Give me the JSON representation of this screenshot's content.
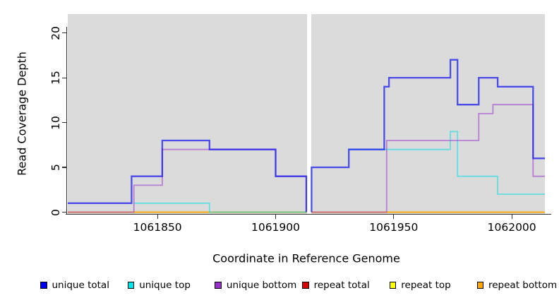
{
  "figure": {
    "background": "#ffffff",
    "plot_background": "#dbdbdb",
    "axis_color": "#303030",
    "text_color": "#000000"
  },
  "chart_data": {
    "type": "line",
    "subtype": "step-coverage",
    "title": "",
    "xlabel": "Coordinate in Reference Genome",
    "ylabel": "Read Coverage Depth",
    "xlim": [
      1061812,
      1062014
    ],
    "ylim": [
      0,
      22.1
    ],
    "grid": false,
    "legend_position": "bottom",
    "x_ticks": [
      {
        "value": 1061850,
        "label": "1061850"
      },
      {
        "value": 1061900,
        "label": "1061900"
      },
      {
        "value": 1061950,
        "label": "1061950"
      },
      {
        "value": 1062000,
        "label": "1062000"
      }
    ],
    "y_ticks": [
      {
        "value": 0,
        "label": "0"
      },
      {
        "value": 5,
        "label": "5"
      },
      {
        "value": 10,
        "label": "10"
      },
      {
        "value": 15,
        "label": "15"
      },
      {
        "value": 20,
        "label": "20"
      }
    ],
    "gap_band": {
      "from": 1061913.2,
      "to": 1061915.2,
      "color": "#ffffff"
    },
    "series": [
      {
        "name": "repeat total",
        "color": "#e00000",
        "opacity": 0.8,
        "width": 1.6,
        "panels": [
          {
            "steps": [
              [
                1061812,
                0
              ]
            ],
            "end": 1061913
          },
          {
            "steps": [
              [
                1061915.2,
                0
              ]
            ],
            "end": 1062014
          }
        ]
      },
      {
        "name": "repeat top",
        "color": "#ffff00",
        "opacity": 0.85,
        "width": 1.6,
        "panels": [
          {
            "steps": [
              [
                1061812,
                0
              ]
            ],
            "end": 1061913
          },
          {
            "steps": [
              [
                1061915.2,
                0
              ]
            ],
            "end": 1062014
          }
        ]
      },
      {
        "name": "repeat bottom",
        "color": "#ffa500",
        "opacity": 0.9,
        "width": 1.8,
        "panels": [
          {
            "steps": [
              [
                1061812,
                0
              ]
            ],
            "end": 1061913
          },
          {
            "steps": [
              [
                1061915.2,
                0
              ]
            ],
            "end": 1062014
          }
        ]
      },
      {
        "name": "unique top",
        "color": "#00dde8",
        "opacity": 0.55,
        "width": 1.8,
        "panels": [
          {
            "steps": [
              [
                1061840,
                1
              ],
              [
                1061872,
                0
              ]
            ],
            "end": 1061913
          },
          {
            "steps": [
              [
                1061931,
                7
              ],
              [
                1061974,
                9
              ],
              [
                1061977,
                4
              ],
              [
                1061994,
                2
              ]
            ],
            "end": 1062014
          }
        ]
      },
      {
        "name": "unique bottom",
        "color": "#9932cc",
        "opacity": 0.55,
        "width": 1.8,
        "panels": [
          {
            "steps": [
              [
                1061812,
                0
              ],
              [
                1061840,
                3
              ],
              [
                1061852,
                7
              ],
              [
                1061900,
                4
              ],
              [
                1061913,
                0
              ]
            ],
            "end": 1061913
          },
          {
            "steps": [
              [
                1061915.2,
                0
              ],
              [
                1061947,
                8
              ],
              [
                1061986,
                11
              ],
              [
                1061992,
                12
              ],
              [
                1062009,
                4
              ]
            ],
            "end": 1062014
          }
        ]
      },
      {
        "name": "unique total",
        "color": "#1414ee",
        "opacity": 0.72,
        "width": 2.3,
        "panels": [
          {
            "steps": [
              [
                1061812,
                1
              ],
              [
                1061839,
                4
              ],
              [
                1061852,
                8
              ],
              [
                1061872,
                7
              ],
              [
                1061900,
                4
              ],
              [
                1061913,
                0
              ]
            ],
            "end": 1061913
          },
          {
            "steps": [
              [
                1061915.2,
                0
              ],
              [
                1061915.2,
                5
              ],
              [
                1061931,
                7
              ],
              [
                1061946,
                14
              ],
              [
                1061948,
                15
              ],
              [
                1061974,
                17
              ],
              [
                1061977,
                12
              ],
              [
                1061986,
                15
              ],
              [
                1061994,
                14
              ],
              [
                1062009,
                6
              ]
            ],
            "end": 1062014
          }
        ]
      }
    ],
    "legend": [
      {
        "label": "unique total",
        "color": "#0000ee"
      },
      {
        "label": "unique top",
        "color": "#00e5ee"
      },
      {
        "label": "unique bottom",
        "color": "#9932cc"
      },
      {
        "label": "repeat total",
        "color": "#dd0000"
      },
      {
        "label": "repeat top",
        "color": "#ffff00"
      },
      {
        "label": "repeat bottom",
        "color": "#ffa500"
      }
    ]
  }
}
